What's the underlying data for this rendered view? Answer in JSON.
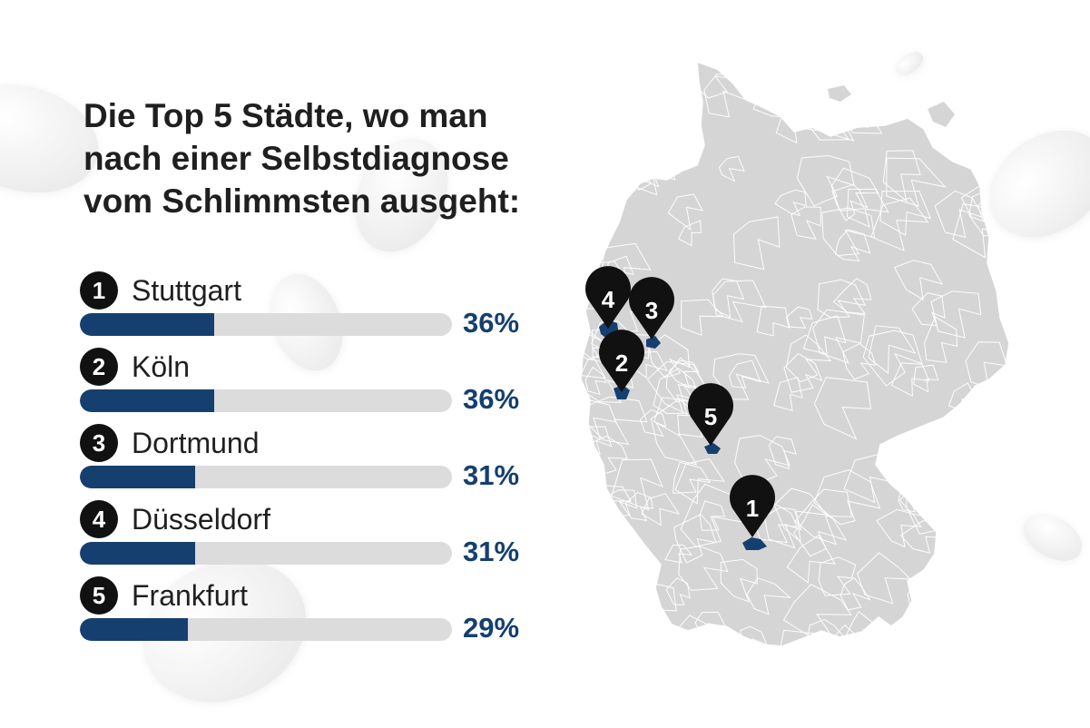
{
  "title": {
    "line1": "Die Top 5 Städte, wo man",
    "line2": "nach einer Selbstdiagnose",
    "line3": "vom Schlimmsten ausgeht:"
  },
  "ranking": [
    {
      "rank": "1",
      "city": "Stuttgart",
      "value_label": "36%",
      "value": 36
    },
    {
      "rank": "2",
      "city": "Köln",
      "value_label": "36%",
      "value": 36
    },
    {
      "rank": "3",
      "city": "Dortmund",
      "value_label": "31%",
      "value": 31
    },
    {
      "rank": "4",
      "city": "Düsseldorf",
      "value_label": "31%",
      "value": 31
    },
    {
      "rank": "5",
      "city": "Frankfurt",
      "value_label": "29%",
      "value": 29
    }
  ],
  "map": {
    "country": "Deutschland",
    "pins": [
      {
        "label": "1",
        "city": "Stuttgart"
      },
      {
        "label": "2",
        "city": "Köln"
      },
      {
        "label": "3",
        "city": "Dortmund"
      },
      {
        "label": "4",
        "city": "Düsseldorf"
      },
      {
        "label": "5",
        "city": "Frankfurt"
      }
    ]
  },
  "colors": {
    "accent": "#153f6f",
    "bar_track": "#dcdcdc",
    "badge": "#111111",
    "map_fill": "#d5d5d5",
    "map_lines": "#ffffff"
  }
}
